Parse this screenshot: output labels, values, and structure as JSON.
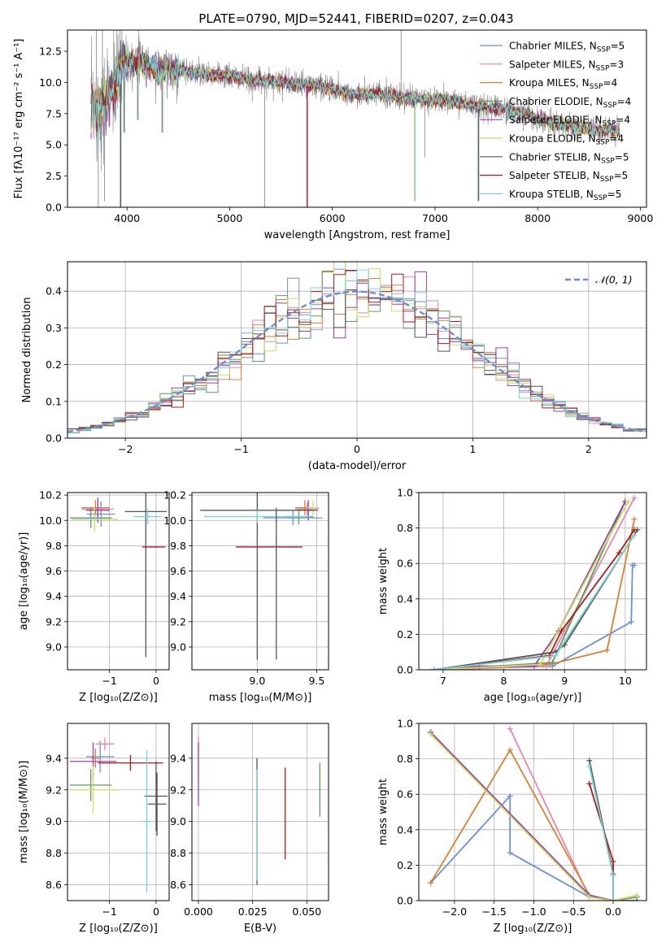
{
  "figure_title": "PLATE=0790, MJD=52441, FIBERID=0207, z=0.043",
  "models": [
    {
      "name": "Chabrier MILES",
      "nssp": "5",
      "color": "#6a8fd6"
    },
    {
      "name": "Salpeter MILES",
      "nssp": "3",
      "color": "#e884b0"
    },
    {
      "name": "Kroupa MILES",
      "nssp": "4",
      "color": "#d98030"
    },
    {
      "name": "Chabrier ELODIE",
      "nssp": "4",
      "color": "#5f9a5f"
    },
    {
      "name": "Salpeter ELODIE",
      "nssp": "4",
      "color": "#9a3fb0"
    },
    {
      "name": "Kroupa ELODIE",
      "nssp": "4",
      "color": "#c8e060"
    },
    {
      "name": "Chabrier STELIB",
      "nssp": "5",
      "color": "#555555"
    },
    {
      "name": "Salpeter STELIB",
      "nssp": "5",
      "color": "#b01818"
    },
    {
      "name": "Kroupa STELIB",
      "nssp": "5",
      "color": "#78d4d4"
    }
  ],
  "chart_data": [
    {
      "id": "spectrum",
      "type": "line",
      "xlabel": "wavelength [Angstrom, rest frame]",
      "ylabel": "Flux [fλ10⁻¹⁷ erg cm⁻² s⁻¹ A⁻¹]",
      "xlim": [
        3420,
        9060
      ],
      "ylim": [
        0,
        14.2
      ],
      "xticks": [
        4000,
        5000,
        6000,
        7000,
        8000,
        9000
      ],
      "yticks": [
        0.0,
        2.5,
        5.0,
        7.5,
        10.0,
        12.5
      ],
      "data_color": "#808080",
      "continuum": {
        "x": [
          3650,
          3700,
          3750,
          3800,
          3850,
          3900,
          3950,
          4000,
          4100,
          4200,
          4300,
          4400,
          4500,
          4600,
          4800,
          5000,
          5200,
          5400,
          5600,
          5800,
          6000,
          6200,
          6400,
          6600,
          6800,
          7000,
          7200,
          7400,
          7600,
          7800,
          8000,
          8200,
          8400,
          8600,
          8800
        ],
        "y": [
          8.3,
          7.8,
          8.0,
          8.6,
          9.3,
          10.3,
          11.6,
          11.6,
          11.8,
          11.4,
          10.9,
          11.2,
          11.0,
          10.9,
          10.6,
          10.5,
          10.1,
          10.2,
          9.9,
          9.8,
          9.5,
          9.0,
          9.1,
          8.9,
          8.7,
          8.6,
          8.5,
          8.1,
          8.0,
          7.6,
          7.1,
          6.7,
          6.4,
          6.2,
          6.1
        ]
      },
      "dips": [
        {
          "x": 3934,
          "y": 0.0
        },
        {
          "x": 3969,
          "y": 6.0
        },
        {
          "x": 4102,
          "y": 7.0
        },
        {
          "x": 4340,
          "y": 6.0
        },
        {
          "x": 5750,
          "y": 0.0
        },
        {
          "x": 6800,
          "y": 0.5
        },
        {
          "x": 7420,
          "y": 0.5
        }
      ],
      "data_spikes": [
        {
          "x": 3700,
          "y": 14.2
        },
        {
          "x": 3720,
          "y": 0.0
        },
        {
          "x": 3760,
          "y": 14.2
        },
        {
          "x": 3780,
          "y": 0.5
        },
        {
          "x": 5340,
          "y": 0.0
        },
        {
          "x": 6670,
          "y": 14.2
        },
        {
          "x": 6900,
          "y": 4.0
        }
      ]
    },
    {
      "id": "residuals",
      "type": "histogram",
      "xlabel": "(data-model)/error",
      "ylabel": "Normed distribution",
      "xlim": [
        -2.5,
        2.5
      ],
      "ylim": [
        0,
        0.48
      ],
      "xticks": [
        -2,
        -1,
        0,
        1,
        2
      ],
      "yticks": [
        0.0,
        0.1,
        0.2,
        0.3,
        0.4
      ],
      "bin_width": 0.1,
      "reference_label": "𝒩(0, 1)",
      "reference_color": "#6a8fd6"
    },
    {
      "id": "age_vs_Z",
      "type": "scatter",
      "xlabel": "Z [log₁₀(Z/Z⊙)]",
      "ylabel": "age  [log₁₀(age/yr)]",
      "xlim": [
        -1.9,
        0.28
      ],
      "ylim": [
        8.82,
        10.22
      ],
      "xticks": [
        -1,
        0
      ],
      "yticks": [
        9.0,
        9.2,
        9.4,
        9.6,
        9.8,
        10.0,
        10.2
      ],
      "points": [
        {
          "model": 0,
          "x": -1.18,
          "xerr": 0.3,
          "y": 10.05,
          "yerr": 0.1
        },
        {
          "model": 1,
          "x": -1.25,
          "xerr": 0.35,
          "y": 10.09,
          "yerr": 0.08
        },
        {
          "model": 2,
          "x": -1.3,
          "xerr": 0.3,
          "y": 10.1,
          "yerr": 0.06
        },
        {
          "model": 3,
          "x": -1.4,
          "xerr": 0.45,
          "y": 10.02,
          "yerr": 0.08
        },
        {
          "model": 4,
          "x": -1.25,
          "xerr": 0.25,
          "y": 10.08,
          "yerr": 0.1
        },
        {
          "model": 5,
          "x": -1.32,
          "xerr": 0.5,
          "y": 10.01,
          "yerr": 0.1
        },
        {
          "model": 6,
          "x": -0.22,
          "xerr": 0.45,
          "y": 10.07,
          "yerr": 1.15
        },
        {
          "model": 7,
          "x": -0.05,
          "xerr": 0.25,
          "y": 9.79,
          "yerr": 0.0
        },
        {
          "model": 8,
          "x": -0.18,
          "xerr": 0.3,
          "y": 10.03,
          "yerr": 0.06
        },
        {
          "model": 0,
          "x": -1.5,
          "xerr": 0.3,
          "y": 10.02,
          "yerr": 0.0
        }
      ]
    },
    {
      "id": "age_vs_mass",
      "type": "scatter",
      "xlabel": "mass [log₁₀(M/M⊙)]",
      "ylabel": "",
      "xlim": [
        8.45,
        9.6
      ],
      "ylim": [
        8.82,
        10.22
      ],
      "xticks": [
        9.0,
        9.5
      ],
      "yticks": [
        9.0,
        9.2,
        9.4,
        9.6,
        9.8,
        10.0,
        10.2
      ],
      "points": [
        {
          "model": 0,
          "x": 9.3,
          "xerr": 0.25,
          "y": 10.02,
          "yerr": 0.06
        },
        {
          "model": 1,
          "x": 9.42,
          "xerr": 0.1,
          "y": 10.09,
          "yerr": 0.05
        },
        {
          "model": 2,
          "x": 9.4,
          "xerr": 0.08,
          "y": 10.1,
          "yerr": 0.06
        },
        {
          "model": 3,
          "x": 9.35,
          "xerr": 0.12,
          "y": 10.03,
          "yerr": 0.06
        },
        {
          "model": 4,
          "x": 9.43,
          "xerr": 0.08,
          "y": 10.08,
          "yerr": 0.08
        },
        {
          "model": 5,
          "x": 9.47,
          "xerr": 0.05,
          "y": 10.1,
          "yerr": 0.06
        },
        {
          "model": 6,
          "x": 9.0,
          "xerr": 0.48,
          "y": 10.08,
          "yerr": 1.18
        },
        {
          "model": 7,
          "x": 9.1,
          "xerr": 0.28,
          "y": 9.79,
          "yerr": 0.0
        },
        {
          "model": 8,
          "x": 9.0,
          "xerr": 0.45,
          "y": 10.03,
          "yerr": 0.05
        },
        {
          "model": 6,
          "x": 9.16,
          "xerr": 0.0,
          "y": 9.5,
          "yerr": 0.6
        }
      ]
    },
    {
      "id": "weight_vs_age",
      "type": "line",
      "xlabel": "age  [log₁₀(age/yr)]",
      "ylabel": "mass weight",
      "xlim": [
        6.6,
        10.35
      ],
      "ylim": [
        0,
        1.0
      ],
      "xticks": [
        7,
        8,
        9,
        10
      ],
      "yticks": [
        0.0,
        0.2,
        0.4,
        0.6,
        0.8,
        1.0
      ],
      "series": [
        {
          "model": 0,
          "x": [
            6.85,
            8.8,
            10.1,
            10.12,
            10.15
          ],
          "y": [
            0.0,
            0.02,
            0.27,
            0.59,
            0.59
          ]
        },
        {
          "model": 1,
          "x": [
            6.85,
            8.7,
            10.15
          ],
          "y": [
            0.0,
            0.02,
            0.97
          ]
        },
        {
          "model": 2,
          "x": [
            6.85,
            8.75,
            9.7,
            10.15
          ],
          "y": [
            0.0,
            0.03,
            0.11,
            0.85
          ]
        },
        {
          "model": 3,
          "x": [
            6.85,
            8.8,
            10.0
          ],
          "y": [
            0.0,
            0.04,
            0.95
          ]
        },
        {
          "model": 4,
          "x": [
            6.85,
            7.6,
            8.5,
            8.9,
            10.0
          ],
          "y": [
            0.0,
            0.02,
            0.02,
            0.22,
            0.95
          ]
        },
        {
          "model": 5,
          "x": [
            6.85,
            8.6,
            10.05
          ],
          "y": [
            0.0,
            0.03,
            0.95
          ]
        },
        {
          "model": 6,
          "x": [
            6.85,
            8.85,
            9.0,
            10.2
          ],
          "y": [
            0.0,
            0.1,
            0.14,
            0.79
          ]
        },
        {
          "model": 7,
          "x": [
            6.85,
            8.75,
            8.95,
            9.9,
            10.15
          ],
          "y": [
            0.0,
            0.08,
            0.22,
            0.66,
            0.79
          ]
        },
        {
          "model": 8,
          "x": [
            6.85,
            8.85,
            10.15
          ],
          "y": [
            0.0,
            0.08,
            0.76
          ]
        }
      ]
    },
    {
      "id": "mass_vs_Z",
      "type": "scatter",
      "xlabel": "Z [log₁₀(Z/Z⊙)]",
      "ylabel": "mass [log₁₀(M/M⊙)]",
      "xlim": [
        -1.9,
        0.28
      ],
      "ylim": [
        8.5,
        9.62
      ],
      "xticks": [
        -1,
        0
      ],
      "yticks": [
        8.6,
        8.8,
        9.0,
        9.2,
        9.4
      ],
      "points": [
        {
          "model": 0,
          "x": -1.2,
          "xerr": 0.3,
          "y": 9.41,
          "yerr": 0.1
        },
        {
          "model": 1,
          "x": -1.1,
          "xerr": 0.2,
          "y": 9.49,
          "yerr": 0.04
        },
        {
          "model": 2,
          "x": -1.3,
          "xerr": 0.1,
          "y": 9.4,
          "yerr": 0.06
        },
        {
          "model": 3,
          "x": -1.4,
          "xerr": 0.45,
          "y": 9.23,
          "yerr": 0.1
        },
        {
          "model": 4,
          "x": -1.35,
          "xerr": 0.5,
          "y": 9.38,
          "yerr": 0.12
        },
        {
          "model": 5,
          "x": -1.35,
          "xerr": 0.5,
          "y": 9.2,
          "yerr": 0.15
        },
        {
          "model": 6,
          "x": 0.0,
          "xerr": 0.25,
          "y": 9.16,
          "yerr": 0.22
        },
        {
          "model": 7,
          "x": -0.55,
          "xerr": 0.7,
          "y": 9.37,
          "yerr": 0.05
        },
        {
          "model": 8,
          "x": -0.2,
          "xerr": 0.1,
          "y": 9.0,
          "yerr": 0.45
        },
        {
          "model": 6,
          "x": 0.02,
          "xerr": 0.2,
          "y": 9.11,
          "yerr": 0.2
        }
      ]
    },
    {
      "id": "mass_vs_ebv",
      "type": "scatter",
      "xlabel": "E(B-V)",
      "ylabel": "",
      "xlim": [
        -0.003,
        0.06
      ],
      "ylim": [
        8.5,
        9.62
      ],
      "xticks": [
        0.0,
        0.025,
        0.05
      ],
      "xtick_labels": [
        "0.000",
        "0.025",
        "0.050"
      ],
      "yticks": [
        8.6,
        8.8,
        9.0,
        9.2,
        9.4
      ],
      "points": [
        {
          "model": 1,
          "x": 0.0,
          "xerr": 0.0,
          "y": 9.42,
          "yerr": 0.12
        },
        {
          "model": 4,
          "x": 0.0,
          "xerr": 0.0,
          "y": 9.3,
          "yerr": 0.2
        },
        {
          "model": 6,
          "x": 0.027,
          "xerr": 0.0,
          "y": 9.0,
          "yerr": 0.4
        },
        {
          "model": 8,
          "x": 0.027,
          "xerr": 0.0,
          "y": 8.98,
          "yerr": 0.35
        },
        {
          "model": 7,
          "x": 0.04,
          "xerr": 0.0,
          "y": 9.05,
          "yerr": 0.29
        },
        {
          "model": 3,
          "x": 0.056,
          "xerr": 0.0,
          "y": 9.2,
          "yerr": 0.17
        }
      ]
    },
    {
      "id": "weight_vs_Z",
      "type": "line",
      "xlabel": "Z [log₁₀(Z/Z⊙)]",
      "ylabel": "mass weight",
      "xlim": [
        -2.45,
        0.42
      ],
      "ylim": [
        0,
        1.0
      ],
      "xticks": [
        -2.0,
        -1.5,
        -1.0,
        -0.5,
        0.0
      ],
      "xtick_labels": [
        "−2.0",
        "−1.5",
        "−1.0",
        "−0.5",
        "0.0"
      ],
      "yticks": [
        0.0,
        0.2,
        0.4,
        0.6,
        0.8,
        1.0
      ],
      "series": [
        {
          "model": 0,
          "x": [
            -2.3,
            -1.3,
            -1.3,
            -0.3,
            0.0
          ],
          "y": [
            0.1,
            0.59,
            0.27,
            0.02,
            0.0
          ]
        },
        {
          "model": 1,
          "x": [
            -1.3,
            -0.3,
            0.0
          ],
          "y": [
            0.97,
            0.02,
            0.0
          ]
        },
        {
          "model": 2,
          "x": [
            -2.3,
            -1.3,
            -0.3,
            0.0
          ],
          "y": [
            0.1,
            0.85,
            0.03,
            0.0
          ]
        },
        {
          "model": 3,
          "x": [
            -2.3,
            -0.3,
            0.0,
            0.3
          ],
          "y": [
            0.95,
            0.03,
            0.0,
            0.02
          ]
        },
        {
          "model": 4,
          "x": [
            -2.3,
            -0.3,
            0.0,
            0.3
          ],
          "y": [
            0.95,
            0.03,
            0.0,
            0.0
          ]
        },
        {
          "model": 5,
          "x": [
            -2.3,
            -0.3,
            0.0,
            0.3
          ],
          "y": [
            0.94,
            0.02,
            0.0,
            0.03
          ]
        },
        {
          "model": 6,
          "x": [
            -0.3,
            0.0,
            0.0
          ],
          "y": [
            0.79,
            0.15,
            0.0
          ]
        },
        {
          "model": 7,
          "x": [
            -0.3,
            0.0,
            0.0
          ],
          "y": [
            0.66,
            0.22,
            0.0
          ]
        },
        {
          "model": 8,
          "x": [
            -0.3,
            0.0,
            0.0
          ],
          "y": [
            0.76,
            0.14,
            0.0
          ]
        }
      ]
    }
  ]
}
